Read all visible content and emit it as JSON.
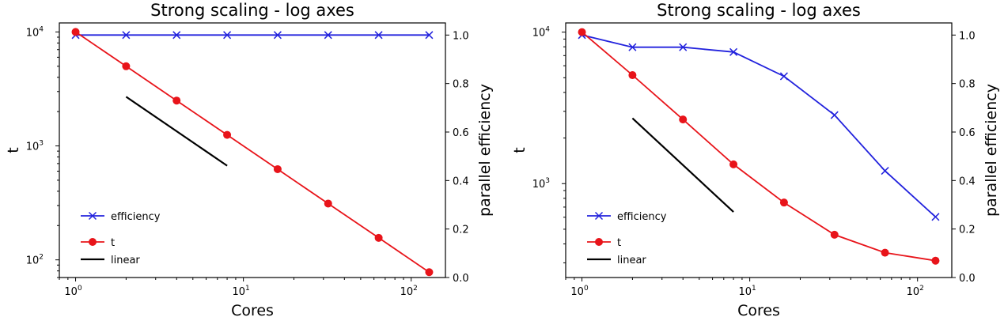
{
  "chart_data": [
    {
      "type": "line",
      "title": "Strong scaling - log axes",
      "xlabel": "Cores",
      "ylabel": "t",
      "y2label": "parallel efficiency",
      "xscale": "log",
      "yscale": "log",
      "xlim": [
        0.8,
        160
      ],
      "ylim": [
        70,
        12000
      ],
      "y2lim": [
        0.0,
        1.05
      ],
      "x_ticks": [
        {
          "value": 1,
          "label": "10",
          "exp": "0"
        },
        {
          "value": 10,
          "label": "10",
          "exp": "1"
        },
        {
          "value": 100,
          "label": "10",
          "exp": "2"
        }
      ],
      "y_ticks": [
        {
          "value": 100,
          "label": "10",
          "exp": "2"
        },
        {
          "value": 1000,
          "label": "10",
          "exp": "3"
        },
        {
          "value": 10000,
          "label": "10",
          "exp": "4"
        }
      ],
      "y2_ticks": [
        "0.0",
        "0.2",
        "0.4",
        "0.6",
        "0.8",
        "1.0"
      ],
      "legend_position": "lower-left",
      "series": [
        {
          "name": "efficiency",
          "axis": "right",
          "marker": "x",
          "color": "#2222dd",
          "x": [
            1,
            2,
            4,
            8,
            16,
            32,
            64,
            128
          ],
          "values": [
            1.0,
            1.0,
            1.0,
            1.0,
            1.0,
            1.0,
            1.0,
            1.0
          ]
        },
        {
          "name": "t",
          "axis": "left",
          "marker": "o",
          "color": "#e8141a",
          "x": [
            1,
            2,
            4,
            8,
            16,
            32,
            64,
            128
          ],
          "values": [
            10000,
            5000,
            2500,
            1250,
            625,
            312,
            156,
            78
          ]
        },
        {
          "name": "linear",
          "axis": "left",
          "marker": "none",
          "color": "#000000",
          "x": [
            2,
            8
          ],
          "values": [
            2700,
            670
          ]
        }
      ]
    },
    {
      "type": "line",
      "title": "Strong scaling - log axes",
      "xlabel": "Cores",
      "ylabel": "t",
      "y2label": "parallel efficiency",
      "xscale": "log",
      "yscale": "log",
      "xlim": [
        0.8,
        160
      ],
      "ylim": [
        240,
        11500
      ],
      "y2lim": [
        0.0,
        1.05
      ],
      "x_ticks": [
        {
          "value": 1,
          "label": "10",
          "exp": "0"
        },
        {
          "value": 10,
          "label": "10",
          "exp": "1"
        },
        {
          "value": 100,
          "label": "10",
          "exp": "2"
        }
      ],
      "y_ticks": [
        {
          "value": 1000,
          "label": "10",
          "exp": "3"
        },
        {
          "value": 10000,
          "label": "10",
          "exp": "4"
        }
      ],
      "y2_ticks": [
        "0.0",
        "0.2",
        "0.4",
        "0.6",
        "0.8",
        "1.0"
      ],
      "legend_position": "lower-left",
      "series": [
        {
          "name": "efficiency",
          "axis": "right",
          "marker": "x",
          "color": "#2222dd",
          "x": [
            1,
            2,
            4,
            8,
            16,
            32,
            64,
            128
          ],
          "values": [
            1.0,
            0.95,
            0.95,
            0.93,
            0.83,
            0.67,
            0.44,
            0.25
          ]
        },
        {
          "name": "t",
          "axis": "left",
          "marker": "o",
          "color": "#e8141a",
          "x": [
            1,
            2,
            4,
            8,
            16,
            32,
            64,
            128
          ],
          "values": [
            10000,
            5200,
            2650,
            1340,
            750,
            460,
            350,
            310
          ]
        },
        {
          "name": "linear",
          "axis": "left",
          "marker": "none",
          "color": "#000000",
          "x": [
            2,
            8
          ],
          "values": [
            2700,
            650
          ]
        }
      ]
    }
  ]
}
